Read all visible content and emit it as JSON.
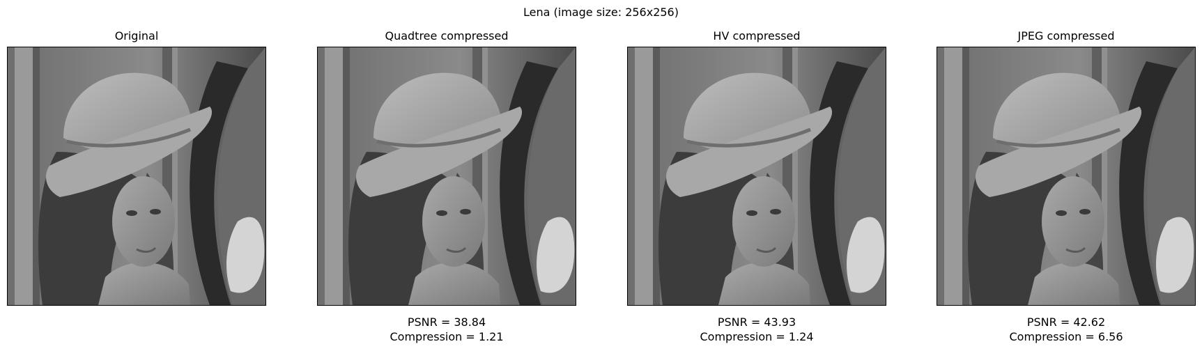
{
  "figure": {
    "title": "Lena (image size: 256x256)"
  },
  "panels": [
    {
      "title": "Original",
      "psnr": "",
      "compression": ""
    },
    {
      "title": "Quadtree compressed",
      "psnr": "PSNR = 38.84",
      "compression": "Compression = 1.21"
    },
    {
      "title": "HV compressed",
      "psnr": "PSNR = 43.93",
      "compression": "Compression = 1.24"
    },
    {
      "title": "JPEG compressed",
      "psnr": "PSNR = 42.62",
      "compression": "Compression = 6.56"
    }
  ]
}
